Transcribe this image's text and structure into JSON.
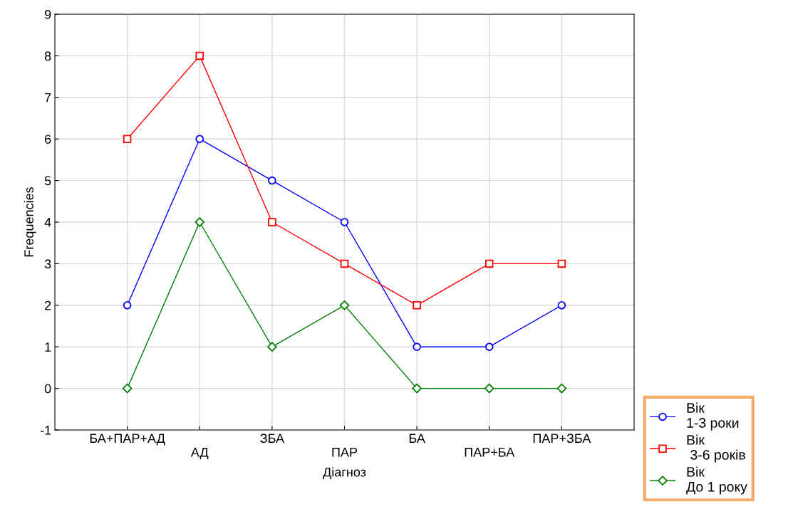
{
  "chart_data": {
    "type": "line",
    "xlabel": "Діагноз",
    "ylabel": "Frequencies",
    "categories": [
      "БА+ПАР+АД",
      "АД",
      "ЗБА",
      "ПАР",
      "БА",
      "ПАР+БА",
      "ПАР+ЗБА"
    ],
    "series": [
      {
        "name": "Вік\n1-3 роки",
        "color": "#0000ff",
        "marker": "circle",
        "values": [
          2,
          6,
          5,
          4,
          1,
          1,
          2
        ]
      },
      {
        "name": "Вік\n 3-6 років",
        "color": "#ff0000",
        "marker": "square",
        "values": [
          6,
          8,
          4,
          3,
          2,
          3,
          3
        ]
      },
      {
        "name": "Вік\nДо 1 року",
        "color": "#008000",
        "marker": "diamond",
        "values": [
          0,
          4,
          1,
          2,
          0,
          0,
          0
        ]
      }
    ],
    "ylim": [
      -1,
      9
    ],
    "yticks": [
      -1,
      0,
      1,
      2,
      3,
      4,
      5,
      6,
      7,
      8,
      9
    ],
    "grid": true,
    "legend": "bottom right",
    "line_style": "solid"
  }
}
